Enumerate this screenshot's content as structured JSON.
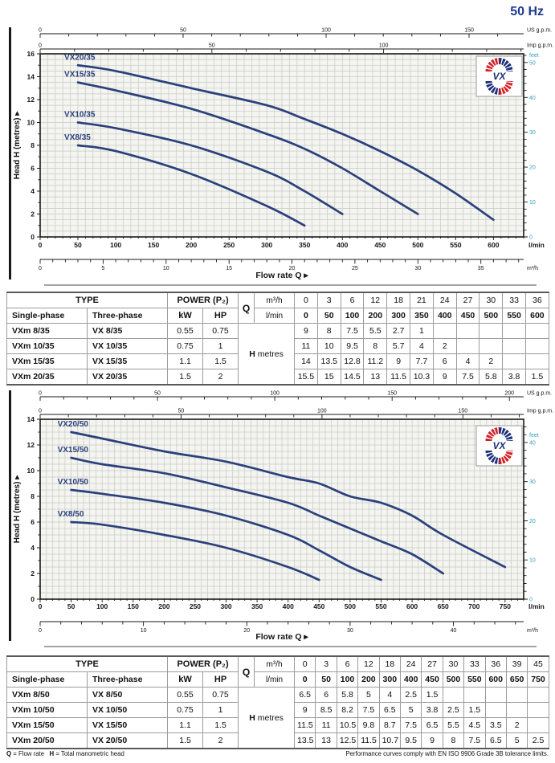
{
  "page": {
    "frequency": "50 Hz"
  },
  "logo": {
    "text": "VX"
  },
  "labels": {
    "head_axis": "Head H (metres)",
    "flow_axis": "Flow rate Q",
    "arrow": "▸"
  },
  "footer": {
    "q_bold": "Q",
    "q_rest": " = Flow rate",
    "h_bold": "H",
    "h_rest": " = Total manometric head",
    "right": "Performance curves comply with EN ISO 9906 Grade 3B tolerance limits."
  },
  "chart_data": [
    {
      "type": "line",
      "title": "VX /35 performance curves 50 Hz",
      "xlabel": "Flow rate Q",
      "ylabel": "Head H (metres)",
      "xlim": [
        0,
        640
      ],
      "ylim": [
        0,
        16
      ],
      "y_tick_step": 2,
      "x_ticks_lmin": [
        0,
        50,
        100,
        150,
        200,
        250,
        300,
        350,
        400,
        450,
        500,
        550,
        600
      ],
      "x_unit": "l/min",
      "grid": {
        "x_minor": 10,
        "y_minor": 0.5
      },
      "legend_position": "on-curve-labels",
      "axes": {
        "us_gpm": {
          "unit": "US g.p.m.",
          "factor": 3.785,
          "labels": [
            0,
            50,
            100,
            150
          ],
          "minor_step": 10,
          "minor_max": 160
        },
        "imp_gpm": {
          "unit": "Imp g.p.m.",
          "factor": 4.546,
          "labels": [
            0,
            50,
            100
          ],
          "minor_step": 10,
          "minor_max": 140
        },
        "m3h": {
          "unit": "m³/h",
          "factor": 16.667,
          "labels": [
            0,
            5,
            10,
            15,
            20,
            25,
            30,
            35
          ],
          "minor_step": 1,
          "minor_max": 38
        },
        "feet": {
          "unit": "feet",
          "m_per_ft": 0.3048,
          "labels": [
            0,
            10,
            20,
            30,
            40,
            50
          ],
          "minor_step": 2,
          "minor_max": 52
        }
      },
      "series": [
        {
          "name": "VX20/35",
          "points": [
            [
              50,
              15
            ],
            [
              100,
              14.5
            ],
            [
              200,
              13
            ],
            [
              300,
              11.5
            ],
            [
              350,
              10.3
            ],
            [
              400,
              9
            ],
            [
              450,
              7.5
            ],
            [
              500,
              5.8
            ],
            [
              550,
              3.8
            ],
            [
              600,
              1.5
            ]
          ]
        },
        {
          "name": "VX15/35",
          "points": [
            [
              50,
              13.5
            ],
            [
              100,
              12.8
            ],
            [
              200,
              11.2
            ],
            [
              300,
              9
            ],
            [
              350,
              7.7
            ],
            [
              400,
              6
            ],
            [
              450,
              4
            ],
            [
              500,
              2
            ]
          ]
        },
        {
          "name": "VX10/35",
          "points": [
            [
              50,
              10
            ],
            [
              100,
              9.5
            ],
            [
              200,
              8
            ],
            [
              300,
              5.7
            ],
            [
              350,
              4
            ],
            [
              400,
              2
            ]
          ]
        },
        {
          "name": "VX8/35",
          "points": [
            [
              50,
              8
            ],
            [
              100,
              7.5
            ],
            [
              200,
              5.5
            ],
            [
              300,
              2.7
            ],
            [
              350,
              1
            ]
          ]
        }
      ]
    },
    {
      "type": "line",
      "title": "VX /50 performance curves 50 Hz",
      "xlabel": "Flow rate Q",
      "ylabel": "Head H (metres)",
      "xlim": [
        0,
        780
      ],
      "ylim": [
        0,
        14
      ],
      "y_tick_step": 2,
      "x_ticks_lmin": [
        0,
        50,
        100,
        150,
        200,
        250,
        300,
        350,
        400,
        450,
        500,
        550,
        600,
        650,
        700,
        750
      ],
      "x_unit": "l/min",
      "grid": {
        "x_minor": 10,
        "y_minor": 0.5
      },
      "legend_position": "on-curve-labels",
      "axes": {
        "us_gpm": {
          "unit": "US g.p.m.",
          "factor": 3.785,
          "labels": [
            0,
            50,
            100,
            150,
            200
          ],
          "minor_step": 10,
          "minor_max": 200
        },
        "imp_gpm": {
          "unit": "Imp g.p.m.",
          "factor": 4.546,
          "labels": [
            0,
            50,
            100,
            150
          ],
          "minor_step": 10,
          "minor_max": 170
        },
        "m3h": {
          "unit": "m³/h",
          "factor": 16.667,
          "labels": [
            0,
            10,
            20,
            30,
            40
          ],
          "minor_step": 2,
          "minor_max": 46
        },
        "feet": {
          "unit": "feet",
          "m_per_ft": 0.3048,
          "labels": [
            0,
            10,
            20,
            30,
            40
          ],
          "minor_step": 2,
          "minor_max": 44
        }
      },
      "series": [
        {
          "name": "VX20/50",
          "points": [
            [
              50,
              13
            ],
            [
              100,
              12.5
            ],
            [
              200,
              11.5
            ],
            [
              300,
              10.7
            ],
            [
              400,
              9.5
            ],
            [
              450,
              9
            ],
            [
              500,
              8
            ],
            [
              550,
              7.5
            ],
            [
              600,
              6.5
            ],
            [
              650,
              5
            ],
            [
              750,
              2.5
            ]
          ]
        },
        {
          "name": "VX15/50",
          "points": [
            [
              50,
              11
            ],
            [
              100,
              10.5
            ],
            [
              200,
              9.8
            ],
            [
              300,
              8.7
            ],
            [
              400,
              7.5
            ],
            [
              450,
              6.5
            ],
            [
              500,
              5.5
            ],
            [
              550,
              4.5
            ],
            [
              600,
              3.5
            ],
            [
              650,
              2
            ]
          ]
        },
        {
          "name": "VX10/50",
          "points": [
            [
              50,
              8.5
            ],
            [
              100,
              8.2
            ],
            [
              200,
              7.5
            ],
            [
              300,
              6.5
            ],
            [
              400,
              5
            ],
            [
              450,
              3.8
            ],
            [
              500,
              2.5
            ],
            [
              550,
              1.5
            ]
          ]
        },
        {
          "name": "VX8/50",
          "points": [
            [
              50,
              6
            ],
            [
              100,
              5.8
            ],
            [
              200,
              5
            ],
            [
              300,
              4
            ],
            [
              400,
              2.5
            ],
            [
              450,
              1.5
            ]
          ]
        }
      ]
    }
  ],
  "tables": [
    {
      "headers": {
        "type": "TYPE",
        "power": "POWER (P₂)",
        "single_phase": "Single-phase",
        "three_phase": "Three-phase",
        "kw": "kW",
        "hp": "HP",
        "q": "Q",
        "m3h": "m³/h",
        "lmin": "l/min",
        "h": "H",
        "metres": "metres"
      },
      "q_m3h": [
        "0",
        "3",
        "6",
        "12",
        "18",
        "21",
        "24",
        "27",
        "30",
        "33",
        "36"
      ],
      "q_lmin": [
        "0",
        "50",
        "100",
        "200",
        "300",
        "350",
        "400",
        "450",
        "500",
        "550",
        "600"
      ],
      "rows": [
        {
          "single_phase": "VXm 8/35",
          "three_phase": "VX 8/35",
          "kw": "0.55",
          "hp": "0.75",
          "h_values": [
            "9",
            "8",
            "7.5",
            "5.5",
            "2.7",
            "1",
            "",
            "",
            "",
            "",
            ""
          ]
        },
        {
          "single_phase": "VXm 10/35",
          "three_phase": "VX 10/35",
          "kw": "0.75",
          "hp": "1",
          "h_values": [
            "11",
            "10",
            "9.5",
            "8",
            "5.7",
            "4",
            "2",
            "",
            "",
            "",
            ""
          ]
        },
        {
          "single_phase": "VXm 15/35",
          "three_phase": "VX 15/35",
          "kw": "1.1",
          "hp": "1.5",
          "h_values": [
            "14",
            "13.5",
            "12.8",
            "11.2",
            "9",
            "7.7",
            "6",
            "4",
            "2",
            "",
            ""
          ]
        },
        {
          "single_phase": "VXm 20/35",
          "three_phase": "VX 20/35",
          "kw": "1.5",
          "hp": "2",
          "h_values": [
            "15.5",
            "15",
            "14.5",
            "13",
            "11.5",
            "10.3",
            "9",
            "7.5",
            "5.8",
            "3.8",
            "1.5"
          ]
        }
      ]
    },
    {
      "headers": {
        "type": "TYPE",
        "power": "POWER (P₂)",
        "single_phase": "Single-phase",
        "three_phase": "Three-phase",
        "kw": "kW",
        "hp": "HP",
        "q": "Q",
        "m3h": "m³/h",
        "lmin": "l/min",
        "h": "H",
        "metres": "metres"
      },
      "q_m3h": [
        "0",
        "3",
        "6",
        "12",
        "18",
        "24",
        "27",
        "30",
        "33",
        "36",
        "39",
        "45"
      ],
      "q_lmin": [
        "0",
        "50",
        "100",
        "200",
        "300",
        "400",
        "450",
        "500",
        "550",
        "600",
        "650",
        "750"
      ],
      "rows": [
        {
          "single_phase": "VXm 8/50",
          "three_phase": "VX 8/50",
          "kw": "0.55",
          "hp": "0.75",
          "h_values": [
            "6.5",
            "6",
            "5.8",
            "5",
            "4",
            "2.5",
            "1.5",
            "",
            "",
            "",
            "",
            ""
          ]
        },
        {
          "single_phase": "VXm 10/50",
          "three_phase": "VX 10/50",
          "kw": "0.75",
          "hp": "1",
          "h_values": [
            "9",
            "8.5",
            "8.2",
            "7.5",
            "6.5",
            "5",
            "3.8",
            "2.5",
            "1.5",
            "",
            "",
            ""
          ]
        },
        {
          "single_phase": "VXm 15/50",
          "three_phase": "VX 15/50",
          "kw": "1.1",
          "hp": "1.5",
          "h_values": [
            "11.5",
            "11",
            "10.5",
            "9.8",
            "8.7",
            "7.5",
            "6.5",
            "5.5",
            "4.5",
            "3.5",
            "2",
            ""
          ]
        },
        {
          "single_phase": "VXm 20/50",
          "three_phase": "VX 20/50",
          "kw": "1.5",
          "hp": "2",
          "h_values": [
            "13.5",
            "13",
            "12.5",
            "11.5",
            "10.7",
            "9.5",
            "9",
            "8",
            "7.5",
            "6.5",
            "5",
            "2.5"
          ]
        }
      ]
    }
  ],
  "colors": {
    "curve": "#2a407c",
    "navy_text": "#1f3a8f",
    "feet_axis": "#2fa0c0",
    "logo_red": "#d42027",
    "logo_blue": "#1b2f7a",
    "grid": "#c9c9c4",
    "plot_bg": "#f4f4f0",
    "axis": "#1a1a1a"
  }
}
